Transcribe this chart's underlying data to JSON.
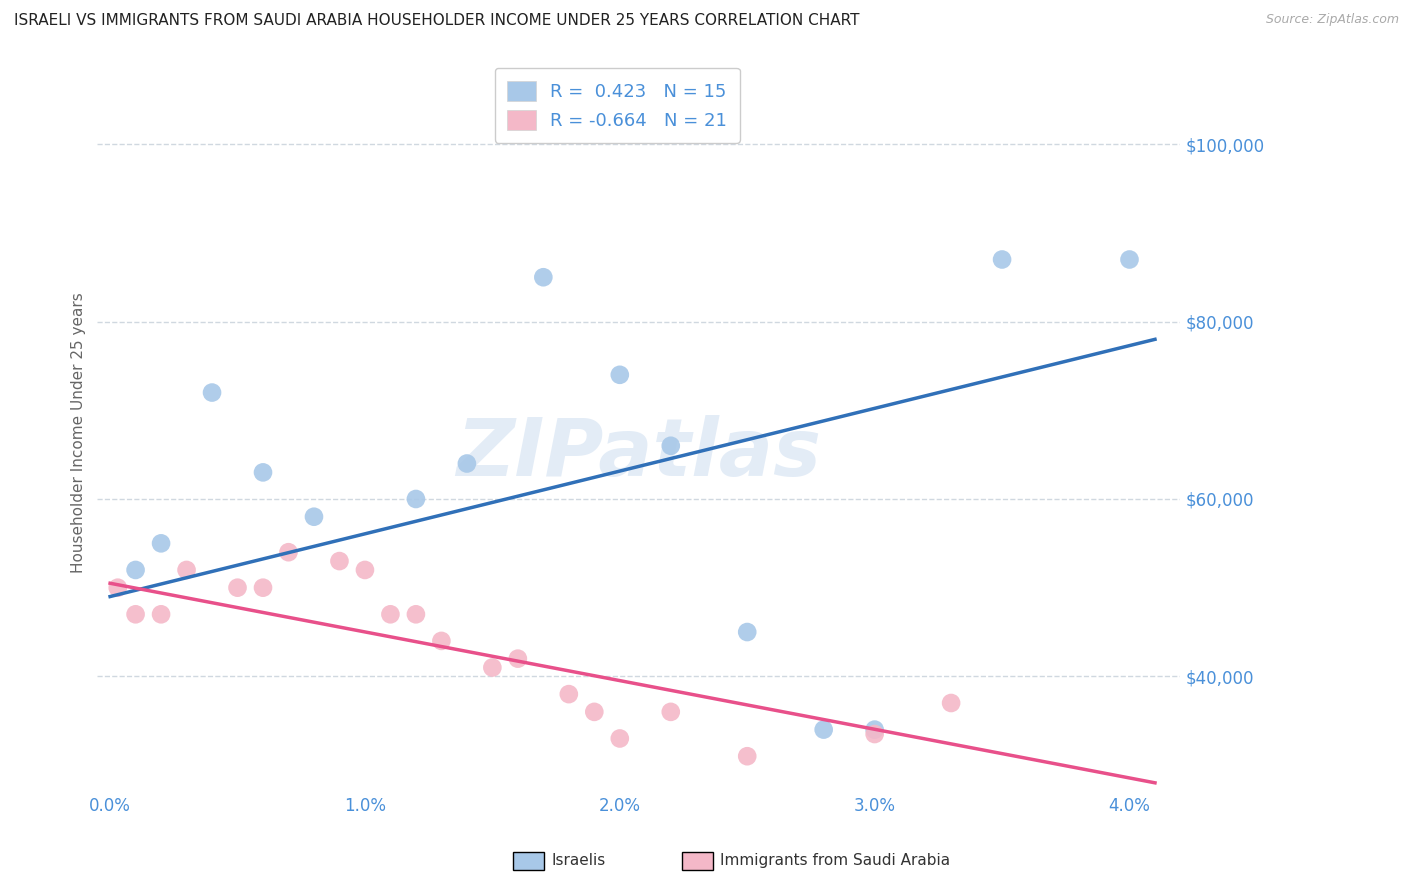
{
  "title": "ISRAELI VS IMMIGRANTS FROM SAUDI ARABIA HOUSEHOLDER INCOME UNDER 25 YEARS CORRELATION CHART",
  "source": "Source: ZipAtlas.com",
  "ylabel": "Householder Income Under 25 years",
  "r_israeli": 0.423,
  "n_israeli": 15,
  "r_saudi": -0.664,
  "n_saudi": 21,
  "watermark": "ZIPatlas",
  "israeli_color": "#a8c8e8",
  "saudi_color": "#f4b8c8",
  "israeli_line_color": "#3070b8",
  "saudi_line_color": "#e8508a",
  "axis_label_color": "#4a90d9",
  "title_color": "#222222",
  "background_color": "#ffffff",
  "grid_color": "#d0d8e0",
  "xlim": [
    -0.0005,
    0.042
  ],
  "ylim": [
    27000,
    108000
  ],
  "yticks": [
    40000,
    60000,
    80000,
    100000
  ],
  "xticks": [
    0.0,
    0.01,
    0.02,
    0.03,
    0.04
  ],
  "xtick_labels": [
    "0.0%",
    "1.0%",
    "2.0%",
    "3.0%",
    "4.0%"
  ],
  "ytick_labels": [
    "$40,000",
    "$60,000",
    "$80,000",
    "$100,000"
  ],
  "israeli_x": [
    0.001,
    0.002,
    0.004,
    0.006,
    0.008,
    0.012,
    0.014,
    0.017,
    0.02,
    0.022,
    0.025,
    0.028,
    0.03,
    0.035,
    0.04
  ],
  "israeli_y": [
    52000,
    55000,
    72000,
    63000,
    58000,
    60000,
    64000,
    85000,
    74000,
    66000,
    45000,
    34000,
    34000,
    87000,
    87000
  ],
  "saudi_x": [
    0.0003,
    0.001,
    0.002,
    0.003,
    0.005,
    0.006,
    0.007,
    0.009,
    0.01,
    0.011,
    0.012,
    0.013,
    0.015,
    0.016,
    0.018,
    0.019,
    0.02,
    0.022,
    0.025,
    0.03,
    0.033
  ],
  "saudi_y": [
    50000,
    47000,
    47000,
    52000,
    50000,
    50000,
    54000,
    53000,
    52000,
    47000,
    47000,
    44000,
    41000,
    42000,
    38000,
    36000,
    33000,
    36000,
    31000,
    33500,
    37000
  ],
  "israeli_line_x0": 0.0,
  "israeli_line_y0": 49000,
  "israeli_line_x1": 0.041,
  "israeli_line_y1": 78000,
  "saudi_line_x0": 0.0,
  "saudi_line_y0": 50500,
  "saudi_line_x1": 0.041,
  "saudi_line_y1": 28000
}
